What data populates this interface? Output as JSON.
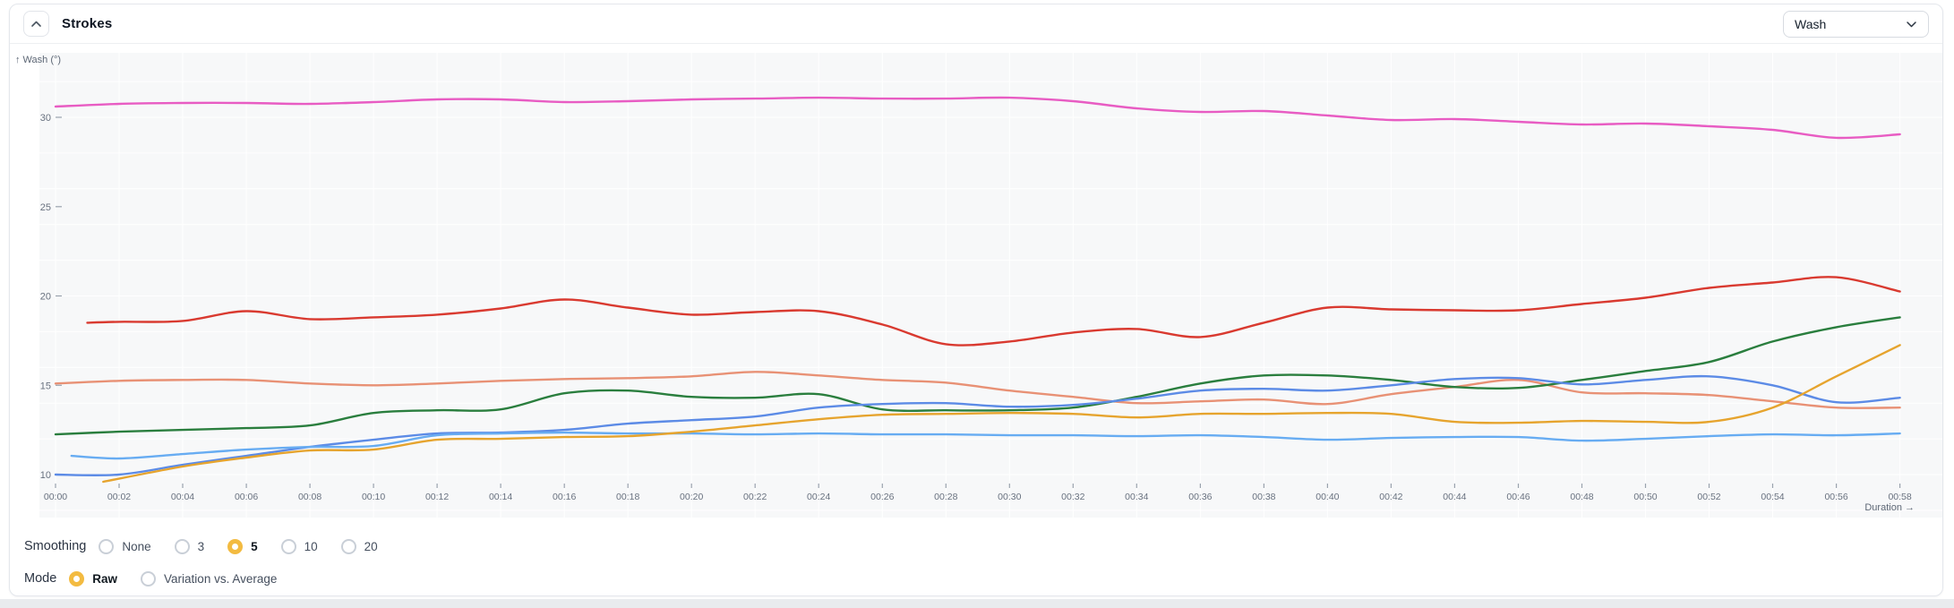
{
  "header": {
    "title": "Strokes",
    "series_select": {
      "value": "Wash"
    }
  },
  "axes": {
    "y_title": "↑ Wash (°)",
    "x_title": "Duration →",
    "y_ticks": [
      10,
      15,
      20,
      25,
      30
    ],
    "x_tick_minutes": [
      0,
      2,
      4,
      6,
      8,
      10,
      12,
      14,
      16,
      18,
      20,
      22,
      24,
      26,
      28,
      30,
      32,
      34,
      36,
      38,
      40,
      42,
      44,
      46,
      48,
      50,
      52,
      54,
      56,
      58
    ],
    "x_tick_labels": [
      "00:00",
      "00:02",
      "00:04",
      "00:06",
      "00:08",
      "00:10",
      "00:12",
      "00:14",
      "00:16",
      "00:18",
      "00:20",
      "00:22",
      "00:24",
      "00:26",
      "00:28",
      "00:30",
      "00:32",
      "00:34",
      "00:36",
      "00:38",
      "00:40",
      "00:42",
      "00:44",
      "00:46",
      "00:48",
      "00:50",
      "00:52",
      "00:54",
      "00:56",
      "00:58"
    ]
  },
  "controls": {
    "rows": [
      {
        "id": "smoothing",
        "label": "Smoothing",
        "options": [
          {
            "label": "None",
            "selected": false
          },
          {
            "label": "3",
            "selected": false
          },
          {
            "label": "5",
            "selected": true
          },
          {
            "label": "10",
            "selected": false
          },
          {
            "label": "20",
            "selected": false
          }
        ]
      },
      {
        "id": "mode",
        "label": "Mode",
        "options": [
          {
            "label": "Raw",
            "selected": true
          },
          {
            "label": "Variation vs. Average",
            "selected": false
          }
        ]
      }
    ]
  },
  "colors": {
    "plot_bg": "#f7f8f9",
    "grid": "#ffffff",
    "tick_text": "#68717f",
    "axis_title": "#5d6775",
    "tick_mark": "#9aa3ae",
    "radio_selected": "#f3bb41",
    "card_border": "#e4e7ec"
  },
  "chart_data": {
    "type": "line",
    "title": "Strokes",
    "ylabel": "Wash (°)",
    "xlabel": "Duration",
    "x_unit": "minutes",
    "x_range": [
      0,
      58
    ],
    "ylim": [
      7.6,
      33.6
    ],
    "grid": {
      "horizontal_step": 2,
      "vertical_step_minutes": 2,
      "labeled_y_ticks": [
        10,
        15,
        20,
        25,
        30
      ]
    },
    "legend": "none",
    "series": [
      {
        "name": "pink",
        "color": "#e85cc3",
        "x": [
          0,
          2,
          4,
          6,
          8,
          10,
          12,
          14,
          16,
          18,
          20,
          22,
          24,
          26,
          28,
          30,
          32,
          34,
          36,
          38,
          40,
          42,
          44,
          46,
          48,
          50,
          52,
          54,
          56,
          58
        ],
        "values": [
          30.6,
          30.75,
          30.8,
          30.8,
          30.75,
          30.85,
          31.0,
          31.0,
          30.85,
          30.9,
          31.0,
          31.05,
          31.1,
          31.05,
          31.05,
          31.1,
          30.9,
          30.5,
          30.3,
          30.35,
          30.1,
          29.85,
          29.9,
          29.75,
          29.6,
          29.65,
          29.5,
          29.3,
          28.85,
          29.05
        ]
      },
      {
        "name": "red",
        "color": "#d93a30",
        "x": [
          1,
          2,
          4,
          6,
          8,
          10,
          12,
          14,
          16,
          18,
          20,
          22,
          24,
          26,
          28,
          30,
          32,
          34,
          36,
          38,
          40,
          42,
          44,
          46,
          48,
          50,
          52,
          54,
          56,
          58
        ],
        "values": [
          18.5,
          18.55,
          18.6,
          19.15,
          18.7,
          18.8,
          18.95,
          19.3,
          19.8,
          19.35,
          18.95,
          19.1,
          19.15,
          18.4,
          17.3,
          17.45,
          17.95,
          18.15,
          17.7,
          18.5,
          19.35,
          19.25,
          19.2,
          19.2,
          19.55,
          19.9,
          20.45,
          20.75,
          21.05,
          20.25
        ]
      },
      {
        "name": "salmon",
        "color": "#e89175",
        "x": [
          0,
          2,
          4,
          6,
          8,
          10,
          12,
          14,
          16,
          18,
          20,
          22,
          24,
          26,
          28,
          30,
          32,
          34,
          36,
          38,
          40,
          42,
          44,
          46,
          48,
          50,
          52,
          54,
          56,
          58
        ],
        "values": [
          15.1,
          15.25,
          15.3,
          15.3,
          15.1,
          15.0,
          15.1,
          15.25,
          15.35,
          15.4,
          15.5,
          15.75,
          15.55,
          15.3,
          15.15,
          14.7,
          14.35,
          14.0,
          14.1,
          14.2,
          13.95,
          14.5,
          14.9,
          15.3,
          14.6,
          14.55,
          14.45,
          14.1,
          13.75,
          13.75
        ]
      },
      {
        "name": "green",
        "color": "#2a7e3e",
        "x": [
          0,
          2,
          4,
          6,
          8,
          10,
          12,
          14,
          16,
          18,
          20,
          22,
          24,
          26,
          28,
          30,
          32,
          34,
          36,
          38,
          40,
          42,
          44,
          46,
          48,
          50,
          52,
          54,
          56,
          58
        ],
        "values": [
          12.25,
          12.4,
          12.5,
          12.6,
          12.75,
          13.45,
          13.6,
          13.65,
          14.55,
          14.7,
          14.35,
          14.3,
          14.5,
          13.65,
          13.6,
          13.6,
          13.75,
          14.35,
          15.1,
          15.55,
          15.55,
          15.3,
          14.9,
          14.85,
          15.3,
          15.8,
          16.3,
          17.45,
          18.25,
          18.8
        ]
      },
      {
        "name": "blue",
        "color": "#5c8be6",
        "x": [
          0,
          2,
          4,
          6,
          8,
          10,
          12,
          14,
          16,
          18,
          20,
          22,
          24,
          26,
          28,
          30,
          32,
          34,
          36,
          38,
          40,
          42,
          44,
          46,
          48,
          50,
          52,
          54,
          56,
          58
        ],
        "values": [
          10.0,
          10.0,
          10.55,
          11.05,
          11.55,
          11.95,
          12.3,
          12.35,
          12.5,
          12.85,
          13.05,
          13.25,
          13.75,
          13.95,
          14.0,
          13.8,
          13.9,
          14.25,
          14.7,
          14.8,
          14.7,
          15.0,
          15.35,
          15.4,
          15.05,
          15.3,
          15.5,
          15.0,
          14.05,
          14.3
        ]
      },
      {
        "name": "sky",
        "color": "#67acf2",
        "x": [
          0.5,
          2,
          4,
          6,
          8,
          10,
          12,
          14,
          16,
          18,
          20,
          22,
          24,
          26,
          28,
          30,
          32,
          34,
          36,
          38,
          40,
          42,
          44,
          46,
          48,
          50,
          52,
          54,
          56,
          58
        ],
        "values": [
          11.05,
          10.9,
          11.15,
          11.4,
          11.55,
          11.6,
          12.2,
          12.3,
          12.35,
          12.3,
          12.3,
          12.25,
          12.3,
          12.25,
          12.25,
          12.2,
          12.2,
          12.15,
          12.2,
          12.1,
          11.95,
          12.05,
          12.1,
          12.1,
          11.9,
          12.0,
          12.15,
          12.25,
          12.2,
          12.3
        ]
      },
      {
        "name": "gold",
        "color": "#e6a42e",
        "x": [
          1.5,
          4,
          6,
          8,
          10,
          12,
          14,
          16,
          18,
          20,
          22,
          24,
          26,
          28,
          30,
          32,
          34,
          36,
          38,
          40,
          42,
          44,
          46,
          48,
          50,
          52,
          54,
          56,
          58
        ],
        "values": [
          9.6,
          10.45,
          10.95,
          11.35,
          11.4,
          11.95,
          12.0,
          12.1,
          12.15,
          12.4,
          12.75,
          13.1,
          13.35,
          13.4,
          13.45,
          13.4,
          13.2,
          13.4,
          13.4,
          13.45,
          13.4,
          12.95,
          12.9,
          13.0,
          12.95,
          12.95,
          13.75,
          15.5,
          17.25
        ]
      }
    ]
  }
}
